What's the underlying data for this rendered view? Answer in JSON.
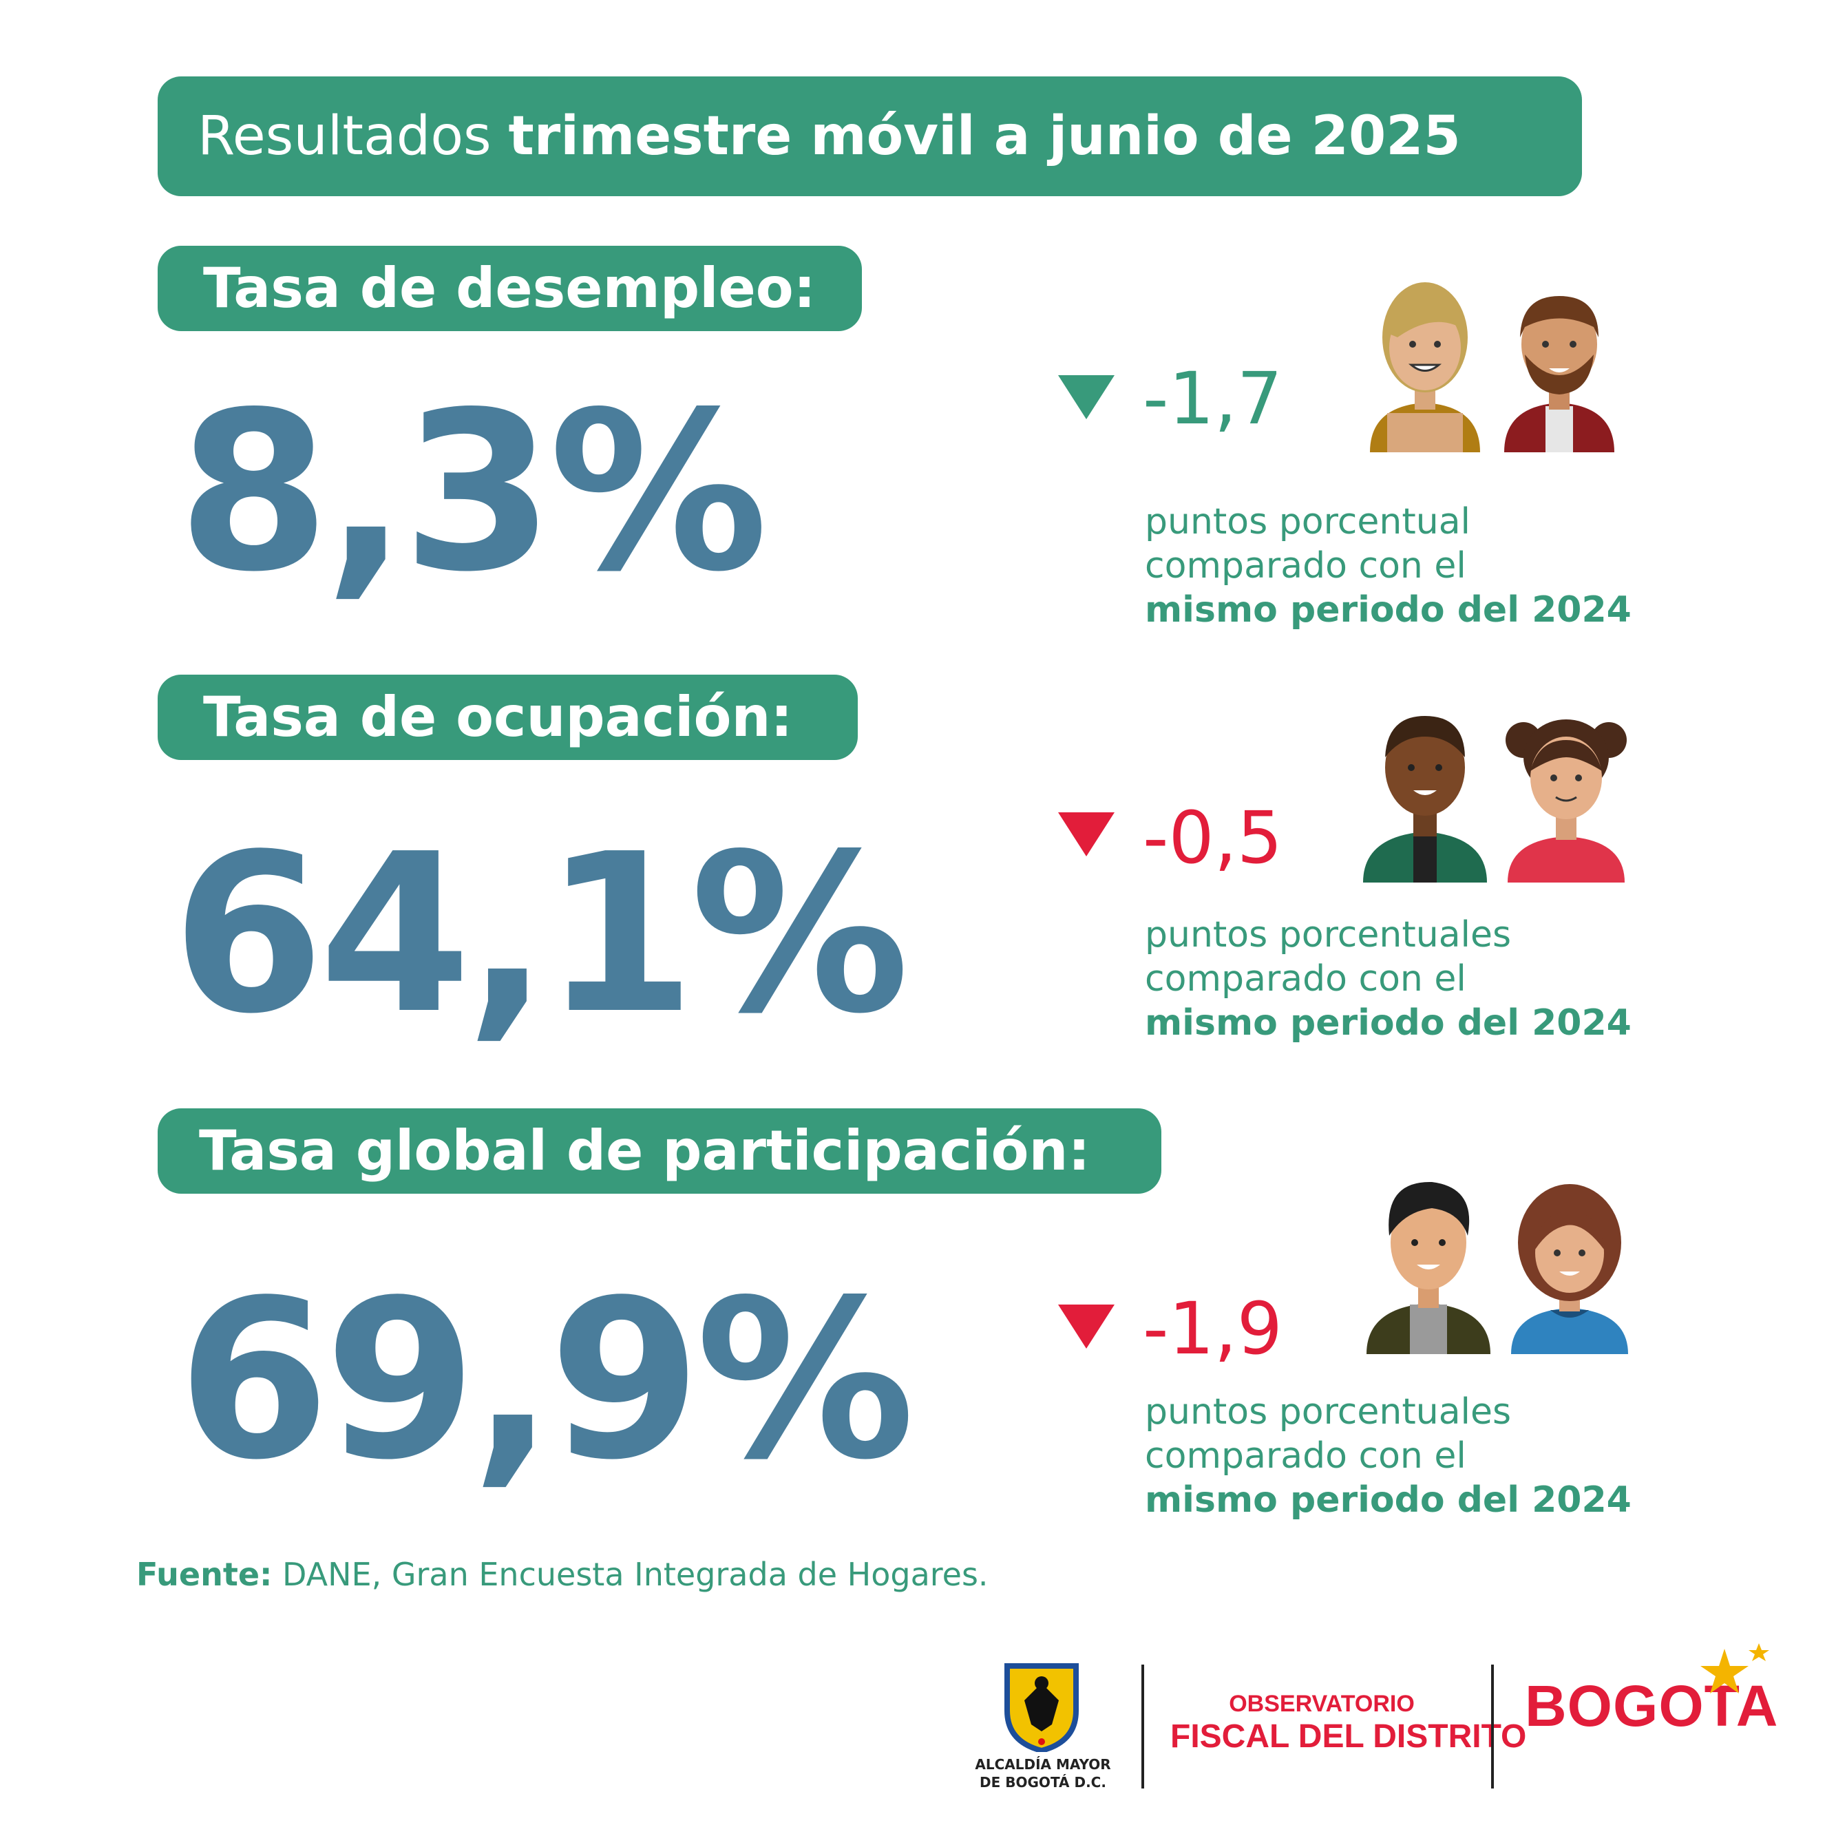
{
  "header": {
    "title_light": "Resultados ",
    "title_bold": "trimestre móvil a junio de 2025"
  },
  "indicators": [
    {
      "label": "Tasa de desempleo:",
      "value": "8,3%",
      "delta": "-1,7",
      "direction": "down",
      "color": "#389a7b",
      "desc_line1": "puntos porcentual",
      "desc_line2": "comparado con el",
      "desc_line3": "mismo periodo del 2024"
    },
    {
      "label": "Tasa de ocupación:",
      "value": "64,1%",
      "delta": "-0,5",
      "direction": "down",
      "color": "#e21d3a",
      "desc_line1": "puntos porcentuales",
      "desc_line2": "comparado con el",
      "desc_line3": "mismo periodo del 2024"
    },
    {
      "label": "Tasa global de participación:",
      "value": "69,9%",
      "delta": "-1,9",
      "direction": "down",
      "color": "#e21d3a",
      "desc_line1": "puntos porcentuales",
      "desc_line2": "comparado con el",
      "desc_line3": "mismo periodo del 2024"
    }
  ],
  "source": {
    "label": "Fuente:",
    "text": " DANE, Gran Encuesta Integrada de Hogares."
  },
  "logos": {
    "alcaldia_line1": "ALCALDÍA MAYOR",
    "alcaldia_line2": "DE BOGOTÁ D.C.",
    "observatorio_line1": "OBSERVATORIO",
    "observatorio_line2": "FISCAL DEL DISTRITO",
    "bogota": "BOGOTA"
  },
  "colors": {
    "green": "#389a7b",
    "blue": "#4a7d9b",
    "red": "#e21d3a"
  }
}
